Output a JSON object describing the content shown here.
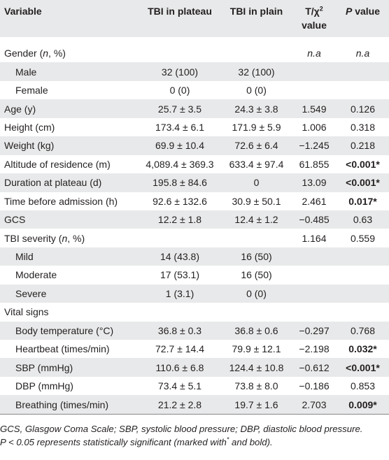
{
  "header": {
    "variable": "Variable",
    "plateau": "TBI in plateau",
    "plain": "TBI in plain",
    "stat": "T/χ",
    "stat_sup": "2",
    "stat_line2": "value",
    "p_italic": "P",
    "p_rest": " value"
  },
  "rows": [
    {
      "var": "Gender (",
      "var_i": "n",
      "var_rest": ", %)",
      "a": "",
      "b": "",
      "t": "n.a",
      "p": "n.a",
      "t_italic": true,
      "p_italic": true
    },
    {
      "var": "Male",
      "a": "32 (100)",
      "b": "32 (100)",
      "t": "",
      "p": "",
      "sub": true
    },
    {
      "var": "Female",
      "a": "0 (0)",
      "b": "0 (0)",
      "t": "",
      "p": "",
      "sub": true
    },
    {
      "var": "Age (y)",
      "a": "25.7 ± 3.5",
      "b": "24.3 ± 3.8",
      "t": "1.549",
      "p": "0.126"
    },
    {
      "var": "Height (cm)",
      "a": "173.4 ± 6.1",
      "b": "171.9 ± 5.9",
      "t": "1.006",
      "p": "0.318"
    },
    {
      "var": "Weight (kg)",
      "a": "69.9 ± 10.4",
      "b": "72.6 ± 6.4",
      "t": "−1.245",
      "p": "0.218"
    },
    {
      "var": "Altitude of residence (m)",
      "a": "4,089.4 ± 369.3",
      "b": "633.4 ± 97.4",
      "t": "61.855",
      "p": "<0.001*",
      "p_bold": true
    },
    {
      "var": "Duration at plateau (d)",
      "a": "195.8 ± 84.6",
      "b": "0",
      "t": "13.09",
      "p": "<0.001*",
      "p_bold": true
    },
    {
      "var": "Time before admission (h)",
      "a": "92.6 ± 132.6",
      "b": "30.9 ± 50.1",
      "t": "2.461",
      "p": "0.017*",
      "p_bold": true
    },
    {
      "var": "GCS",
      "a": "12.2 ± 1.8",
      "b": "12.4 ± 1.2",
      "t": "−0.485",
      "p": "0.63"
    },
    {
      "var": "TBI severity (",
      "var_i": "n",
      "var_rest": ", %)",
      "a": "",
      "b": "",
      "t": "1.164",
      "p": "0.559"
    },
    {
      "var": "Mild",
      "a": "14 (43.8)",
      "b": "16 (50)",
      "t": "",
      "p": "",
      "sub": true
    },
    {
      "var": "Moderate",
      "a": "17 (53.1)",
      "b": "16 (50)",
      "t": "",
      "p": "",
      "sub": true
    },
    {
      "var": "Severe",
      "a": "1 (3.1)",
      "b": "0 (0)",
      "t": "",
      "p": "",
      "sub": true
    },
    {
      "var": "Vital signs",
      "a": "",
      "b": "",
      "t": "",
      "p": ""
    },
    {
      "var": "Body temperature (°C)",
      "a": "36.8 ± 0.3",
      "b": "36.8 ± 0.6",
      "t": "−0.297",
      "p": "0.768",
      "sub": true
    },
    {
      "var": "Heartbeat (times/min)",
      "a": "72.7 ± 14.4",
      "b": "79.9 ± 12.1",
      "t": "−2.198",
      "p": "0.032*",
      "p_bold": true,
      "sub": true
    },
    {
      "var": "SBP (mmHg)",
      "a": "110.6 ± 6.8",
      "b": "124.4 ± 10.8",
      "t": "−0.612",
      "p": "<0.001*",
      "p_bold": true,
      "sub": true
    },
    {
      "var": "DBP (mmHg)",
      "a": "73.4 ± 5.1",
      "b": "73.8 ± 8.0",
      "t": "−0.186",
      "p": "0.853",
      "sub": true
    },
    {
      "var": "Breathing (times/min)",
      "a": "21.2 ± 2.8",
      "b": "19.7 ± 1.6",
      "t": "2.703",
      "p": "0.009*",
      "p_bold": true,
      "sub": true
    }
  ],
  "footnote": {
    "line1": "GCS, Glasgow Coma Scale; SBP, systolic blood pressure; DBP, diastolic blood pressure.",
    "line2_pre": "P < 0.05 represents statistically significant (marked with",
    "line2_sup": "*",
    "line2_post": " and bold)."
  }
}
